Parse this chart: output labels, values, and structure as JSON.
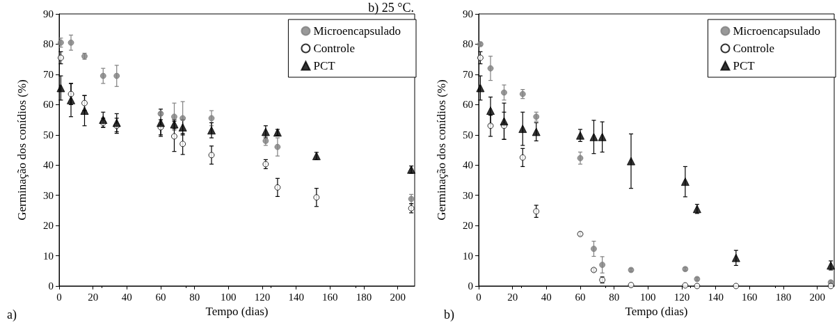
{
  "chart_data": [
    {
      "type": "scatter",
      "title": "b) 25 °C.",
      "xlabel": "Tempo (dias)",
      "ylabel": "Germinação dos conídios (%)",
      "annotations": [
        "a)"
      ],
      "x": [
        1,
        7,
        15,
        26,
        34,
        60,
        68,
        73,
        90,
        122,
        129,
        152,
        208
      ],
      "xlim": [
        0,
        210
      ],
      "xticks": [
        0,
        20,
        40,
        60,
        80,
        100,
        120,
        140,
        160,
        180,
        200
      ],
      "ylim": [
        0,
        90
      ],
      "yticks": [
        0,
        10,
        20,
        30,
        40,
        50,
        60,
        70,
        80,
        90
      ],
      "grid": false,
      "legend": "top right",
      "series": [
        {
          "name": "Microencapsulado",
          "color": "#808080",
          "marker": "circle",
          "values": [
            80.5,
            80.5,
            76,
            69.5,
            69.5,
            57,
            56,
            55.5,
            55.5,
            48,
            46,
            null,
            28.8
          ],
          "errors": [
            1.5,
            2.5,
            1,
            2.5,
            3.5,
            0.5,
            4.5,
            5.5,
            2.5,
            1.5,
            3,
            null,
            1.5
          ]
        },
        {
          "name": "Controle",
          "color": "#ffffff",
          "marker": "circle",
          "values": [
            75.5,
            63.5,
            60.5,
            54,
            53,
            52.5,
            49.5,
            47,
            43.3,
            40.3,
            32.6,
            29.3,
            25.7
          ],
          "errors": [
            2,
            3.5,
            2.5,
            1.5,
            2.5,
            2.5,
            5,
            3.5,
            3,
            1.5,
            3,
            3,
            1.5
          ]
        },
        {
          "name": "PCT",
          "color": "#000000",
          "marker": "triangle",
          "values": [
            65.5,
            61.5,
            58,
            55,
            54,
            54,
            53.5,
            52.5,
            51.5,
            51,
            50.8,
            43,
            38.5
          ],
          "errors": [
            4,
            5.5,
            5,
            2.5,
            3,
            4.5,
            1.5,
            2.5,
            2.5,
            2,
            1,
            1.2,
            1.2
          ]
        }
      ]
    },
    {
      "type": "scatter",
      "xlabel": "Tempo (dias)",
      "ylabel": "Germinação dos conídios (%)",
      "annotations": [
        "b)"
      ],
      "x": [
        1,
        7,
        15,
        26,
        34,
        60,
        68,
        73,
        90,
        122,
        129,
        152,
        208
      ],
      "xlim": [
        0,
        210
      ],
      "xticks": [
        0,
        20,
        40,
        60,
        80,
        100,
        120,
        140,
        160,
        180,
        200
      ],
      "ylim": [
        0,
        90
      ],
      "yticks": [
        0,
        10,
        20,
        30,
        40,
        50,
        60,
        70,
        80,
        90
      ],
      "grid": false,
      "legend": "top right",
      "series": [
        {
          "name": "Microencapsulado",
          "color": "#808080",
          "marker": "circle",
          "values": [
            80,
            72,
            64,
            63.5,
            56,
            42.3,
            12.3,
            7,
            5.3,
            5.6,
            2.3,
            null,
            1.2
          ],
          "errors": [
            0.5,
            4,
            2.5,
            1.5,
            1.5,
            2,
            2.5,
            2.7,
            0.5,
            0.5,
            0.5,
            null,
            0.5
          ]
        },
        {
          "name": "Controle",
          "color": "#ffffff",
          "marker": "circle",
          "values": [
            75.5,
            53,
            53,
            42.5,
            24.7,
            17.2,
            5.3,
            2,
            0.3,
            0.2,
            0,
            0,
            0
          ],
          "errors": [
            2,
            3.5,
            4.5,
            3,
            2,
            0.5,
            0.5,
            1,
            null,
            null,
            null,
            null,
            null
          ]
        },
        {
          "name": "PCT",
          "color": "#000000",
          "marker": "triangle",
          "values": [
            65.5,
            58,
            54.5,
            52,
            51,
            49.8,
            49.3,
            49.3,
            41.3,
            34.5,
            25.5,
            9.3,
            6.8
          ],
          "errors": [
            4,
            4.5,
            6,
            5.5,
            3,
            2,
            5.5,
            5,
            9,
            5,
            1.5,
            2.5,
            1.5
          ]
        }
      ]
    }
  ]
}
